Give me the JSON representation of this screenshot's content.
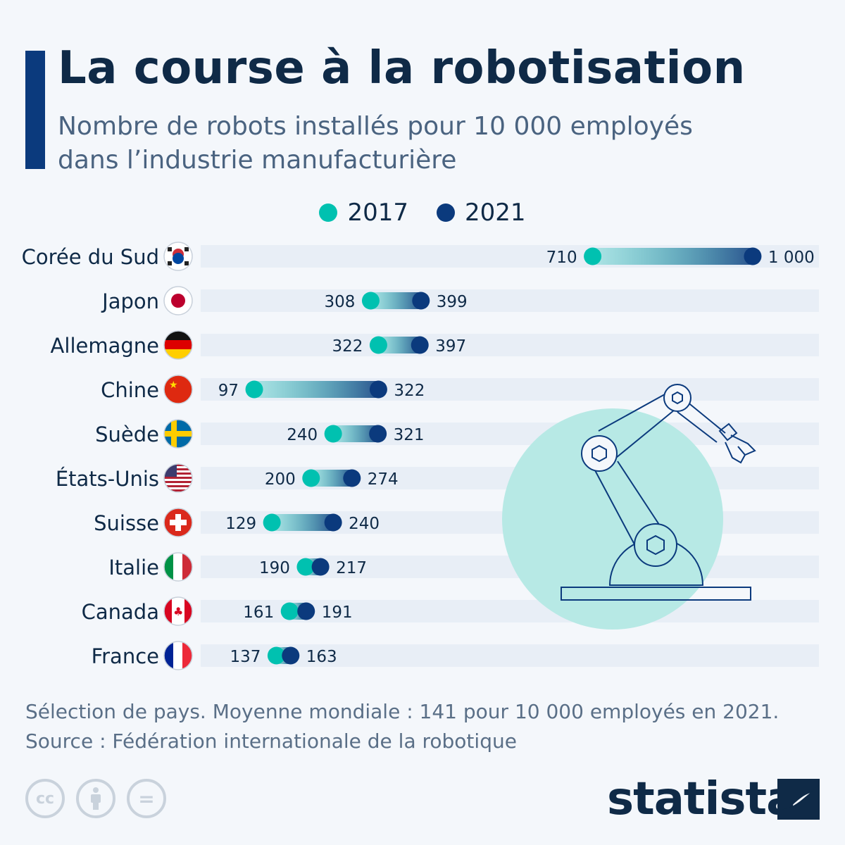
{
  "header": {
    "title": "La course à la robotisation",
    "subtitle_line1": "Nombre de robots installés pour 10 000 employés",
    "subtitle_line2": "dans l’industrie manufacturière"
  },
  "colors": {
    "accent": "#0b3a7d",
    "series_2017": "#00c1b0",
    "series_2021": "#0b3a7d",
    "track": "#e8eef6",
    "background": "#f4f7fb"
  },
  "chart_data": {
    "type": "dumbbell",
    "categories": [
      "Corée du Sud",
      "Japon",
      "Allemagne",
      "Chine",
      "Suède",
      "États-Unis",
      "Suisse",
      "Italie",
      "Canada",
      "France"
    ],
    "series": [
      {
        "name": "2017",
        "values": [
          710,
          308,
          322,
          97,
          240,
          200,
          129,
          190,
          161,
          137
        ]
      },
      {
        "name": "2021",
        "values": [
          1000,
          399,
          397,
          322,
          321,
          274,
          240,
          217,
          191,
          163
        ]
      }
    ],
    "value_labels": {
      "2017": [
        "710",
        "308",
        "322",
        "97",
        "240",
        "200",
        "129",
        "190",
        "161",
        "137"
      ],
      "2021": [
        "1 000",
        "399",
        "397",
        "322",
        "321",
        "274",
        "240",
        "217",
        "191",
        "163"
      ]
    },
    "xlim": [
      0,
      1120
    ],
    "legend_placement": "top",
    "grid": false,
    "flags": [
      "south-korea-flag-icon",
      "japan-flag-icon",
      "germany-flag-icon",
      "china-flag-icon",
      "sweden-flag-icon",
      "usa-flag-icon",
      "switzerland-flag-icon",
      "italy-flag-icon",
      "canada-flag-icon",
      "france-flag-icon"
    ]
  },
  "footer": {
    "note": "Sélection de pays. Moyenne mondiale : 141 pour 10 000 employés en 2021.",
    "source": "Source : Fédération internationale de la robotique"
  },
  "branding": {
    "logo": "statista",
    "license_icons": [
      "cc-icon",
      "attribution-icon",
      "no-derivatives-icon"
    ],
    "cc_text": "cc",
    "nd_text": "="
  }
}
